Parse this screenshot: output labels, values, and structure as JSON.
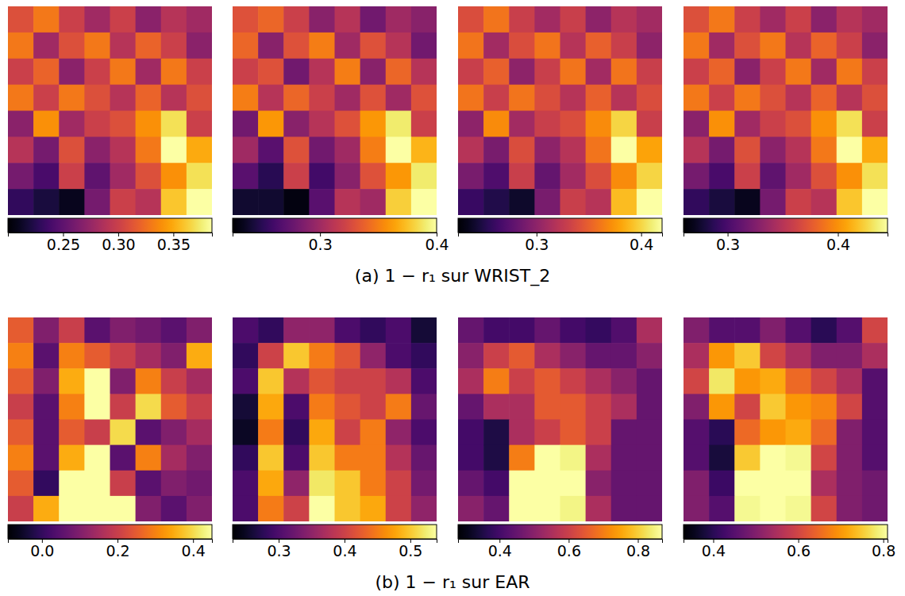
{
  "chart_data": [
    {
      "type": "heatmap",
      "title": "(a) 1 − r₁ sur WRIST_2",
      "color": "inferno",
      "panels": [
        {
          "colorbar_range": [
            0.2,
            0.385
          ],
          "colorbar_ticks": [
            0.25,
            {
              "value": 0.3,
              "label": "0.30"
            },
            0.35
          ],
          "cells": [
            [
              0.31,
              0.33,
              0.3,
              0.28,
              0.3,
              0.27,
              0.29,
              0.28
            ],
            [
              0.33,
              0.28,
              0.31,
              0.33,
              0.29,
              0.32,
              0.3,
              0.27
            ],
            [
              0.3,
              0.32,
              0.27,
              0.3,
              0.33,
              0.28,
              0.33,
              0.3
            ],
            [
              0.33,
              0.3,
              0.33,
              0.31,
              0.29,
              0.32,
              0.29,
              0.31
            ],
            [
              0.27,
              0.34,
              0.28,
              0.3,
              0.31,
              0.34,
              0.37,
              0.3
            ],
            [
              0.29,
              0.26,
              0.31,
              0.27,
              0.29,
              0.33,
              0.39,
              0.35
            ],
            [
              0.26,
              0.24,
              0.3,
              0.25,
              0.28,
              0.31,
              0.34,
              0.37
            ],
            [
              0.23,
              0.22,
              0.21,
              0.26,
              0.3,
              0.29,
              0.36,
              0.39
            ]
          ]
        },
        {
          "colorbar_range": [
            0.225,
            0.4
          ],
          "colorbar_ticks": [
            0.3,
            0.4
          ],
          "cells": [
            [
              0.33,
              0.34,
              0.32,
              0.29,
              0.31,
              0.28,
              0.3,
              0.29
            ],
            [
              0.34,
              0.29,
              0.33,
              0.35,
              0.3,
              0.33,
              0.31,
              0.28
            ],
            [
              0.32,
              0.33,
              0.28,
              0.31,
              0.35,
              0.29,
              0.34,
              0.31
            ],
            [
              0.35,
              0.31,
              0.34,
              0.32,
              0.3,
              0.33,
              0.3,
              0.33
            ],
            [
              0.28,
              0.36,
              0.29,
              0.31,
              0.33,
              0.36,
              0.39,
              0.32
            ],
            [
              0.3,
              0.27,
              0.33,
              0.28,
              0.3,
              0.35,
              0.4,
              0.37
            ],
            [
              0.27,
              0.25,
              0.32,
              0.26,
              0.29,
              0.33,
              0.36,
              0.39
            ],
            [
              0.24,
              0.24,
              0.23,
              0.27,
              0.31,
              0.3,
              0.38,
              0.4
            ]
          ]
        },
        {
          "colorbar_range": [
            0.225,
            0.42
          ],
          "colorbar_ticks": [
            0.3,
            0.4
          ],
          "cells": [
            [
              0.34,
              0.36,
              0.33,
              0.31,
              0.33,
              0.3,
              0.32,
              0.31
            ],
            [
              0.36,
              0.31,
              0.34,
              0.36,
              0.32,
              0.35,
              0.33,
              0.3
            ],
            [
              0.33,
              0.35,
              0.3,
              0.33,
              0.36,
              0.31,
              0.36,
              0.33
            ],
            [
              0.36,
              0.33,
              0.36,
              0.34,
              0.32,
              0.35,
              0.32,
              0.34
            ],
            [
              0.3,
              0.37,
              0.31,
              0.33,
              0.34,
              0.37,
              0.4,
              0.33
            ],
            [
              0.32,
              0.29,
              0.34,
              0.3,
              0.32,
              0.36,
              0.42,
              0.38
            ],
            [
              0.29,
              0.27,
              0.33,
              0.28,
              0.31,
              0.34,
              0.37,
              0.4
            ],
            [
              0.26,
              0.25,
              0.24,
              0.29,
              0.33,
              0.32,
              0.39,
              0.42
            ]
          ]
        },
        {
          "colorbar_range": [
            0.26,
            0.445
          ],
          "colorbar_ticks": [
            0.3,
            0.4
          ],
          "cells": [
            [
              0.37,
              0.39,
              0.36,
              0.34,
              0.36,
              0.33,
              0.35,
              0.34
            ],
            [
              0.39,
              0.34,
              0.37,
              0.39,
              0.35,
              0.38,
              0.36,
              0.33
            ],
            [
              0.36,
              0.38,
              0.33,
              0.36,
              0.39,
              0.34,
              0.39,
              0.36
            ],
            [
              0.39,
              0.36,
              0.39,
              0.37,
              0.35,
              0.38,
              0.35,
              0.37
            ],
            [
              0.33,
              0.4,
              0.34,
              0.36,
              0.37,
              0.4,
              0.43,
              0.36
            ],
            [
              0.35,
              0.32,
              0.37,
              0.33,
              0.35,
              0.39,
              0.445,
              0.41
            ],
            [
              0.32,
              0.3,
              0.36,
              0.31,
              0.34,
              0.37,
              0.4,
              0.43
            ],
            [
              0.29,
              0.28,
              0.27,
              0.32,
              0.36,
              0.35,
              0.42,
              0.445
            ]
          ]
        }
      ]
    },
    {
      "type": "heatmap",
      "title": "(b) 1 − r₁ sur EAR",
      "color": "inferno",
      "panels": [
        {
          "colorbar_range": [
            -0.09,
            0.45
          ],
          "colorbar_ticks": [
            {
              "value": 0,
              "label": "0.0"
            },
            0.2,
            0.4
          ],
          "cells": [
            [
              0.25,
              0.1,
              0.2,
              0.05,
              0.1,
              0.08,
              0.05,
              0.1
            ],
            [
              0.3,
              0.05,
              0.3,
              0.25,
              0.2,
              0.15,
              0.1,
              0.35
            ],
            [
              0.25,
              0.1,
              0.35,
              0.45,
              0.1,
              0.3,
              0.2,
              0.15
            ],
            [
              0.2,
              0.05,
              0.3,
              0.45,
              0.2,
              0.4,
              0.25,
              0.2
            ],
            [
              0.25,
              0.05,
              0.25,
              0.2,
              0.4,
              0.05,
              0.1,
              0.15
            ],
            [
              0.3,
              0.05,
              0.35,
              0.45,
              0.05,
              0.3,
              0.15,
              0.1
            ],
            [
              0.25,
              0.0,
              0.45,
              0.45,
              0.2,
              0.05,
              0.1,
              0.08
            ],
            [
              0.2,
              0.35,
              0.45,
              0.45,
              0.45,
              0.1,
              0.05,
              0.1
            ]
          ]
        },
        {
          "colorbar_range": [
            0.23,
            0.54
          ],
          "colorbar_ticks": [
            0.3,
            0.4,
            0.5
          ],
          "cells": [
            [
              0.3,
              0.28,
              0.35,
              0.35,
              0.3,
              0.28,
              0.3,
              0.26
            ],
            [
              0.28,
              0.4,
              0.5,
              0.45,
              0.42,
              0.35,
              0.3,
              0.28
            ],
            [
              0.3,
              0.5,
              0.38,
              0.42,
              0.4,
              0.4,
              0.38,
              0.3
            ],
            [
              0.26,
              0.48,
              0.3,
              0.45,
              0.42,
              0.4,
              0.45,
              0.32
            ],
            [
              0.25,
              0.45,
              0.28,
              0.48,
              0.4,
              0.45,
              0.35,
              0.3
            ],
            [
              0.28,
              0.5,
              0.3,
              0.5,
              0.45,
              0.45,
              0.38,
              0.32
            ],
            [
              0.3,
              0.48,
              0.35,
              0.52,
              0.5,
              0.45,
              0.4,
              0.33
            ],
            [
              0.3,
              0.45,
              0.4,
              0.54,
              0.5,
              0.48,
              0.4,
              0.35
            ]
          ]
        },
        {
          "colorbar_range": [
            0.28,
            0.87
          ],
          "colorbar_ticks": [
            0.4,
            0.6,
            0.8
          ],
          "cells": [
            [
              0.45,
              0.4,
              0.4,
              0.45,
              0.4,
              0.38,
              0.42,
              0.55
            ],
            [
              0.5,
              0.6,
              0.65,
              0.55,
              0.5,
              0.45,
              0.45,
              0.5
            ],
            [
              0.55,
              0.7,
              0.6,
              0.65,
              0.6,
              0.55,
              0.5,
              0.45
            ],
            [
              0.45,
              0.55,
              0.55,
              0.65,
              0.65,
              0.6,
              0.55,
              0.45
            ],
            [
              0.4,
              0.35,
              0.55,
              0.6,
              0.65,
              0.6,
              0.45,
              0.45
            ],
            [
              0.4,
              0.35,
              0.7,
              0.87,
              0.85,
              0.55,
              0.45,
              0.45
            ],
            [
              0.45,
              0.4,
              0.87,
              0.87,
              0.87,
              0.5,
              0.45,
              0.45
            ],
            [
              0.5,
              0.45,
              0.87,
              0.87,
              0.85,
              0.55,
              0.45,
              0.45
            ]
          ]
        },
        {
          "colorbar_range": [
            0.33,
            0.81
          ],
          "colorbar_ticks": [
            0.4,
            0.6,
            0.8
          ],
          "cells": [
            [
              0.5,
              0.45,
              0.45,
              0.5,
              0.45,
              0.4,
              0.45,
              0.6
            ],
            [
              0.55,
              0.7,
              0.75,
              0.6,
              0.55,
              0.5,
              0.5,
              0.55
            ],
            [
              0.6,
              0.78,
              0.7,
              0.72,
              0.65,
              0.6,
              0.55,
              0.45
            ],
            [
              0.5,
              0.7,
              0.6,
              0.75,
              0.7,
              0.68,
              0.6,
              0.45
            ],
            [
              0.45,
              0.4,
              0.65,
              0.7,
              0.72,
              0.65,
              0.5,
              0.45
            ],
            [
              0.45,
              0.38,
              0.75,
              0.81,
              0.8,
              0.6,
              0.5,
              0.45
            ],
            [
              0.5,
              0.42,
              0.81,
              0.81,
              0.81,
              0.55,
              0.5,
              0.48
            ],
            [
              0.5,
              0.45,
              0.8,
              0.81,
              0.8,
              0.6,
              0.5,
              0.48
            ]
          ]
        }
      ]
    }
  ]
}
